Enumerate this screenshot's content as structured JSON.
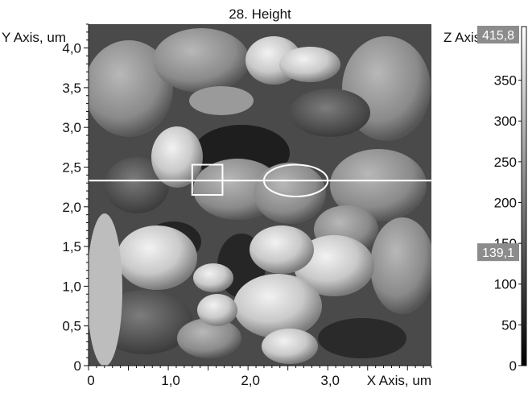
{
  "chart_data": {
    "type": "heatmap",
    "title": "28. Height",
    "xlabel": "X Axis, um",
    "ylabel": "Y Axis, um",
    "zlabel": "Z Axis",
    "xlim": [
      0,
      4.3
    ],
    "ylim": [
      0,
      4.3
    ],
    "x_ticks": [
      {
        "value": 0,
        "label": "0"
      },
      {
        "value": 1,
        "label": "1,0"
      },
      {
        "value": 2,
        "label": "2,0"
      },
      {
        "value": 3,
        "label": "3,0"
      }
    ],
    "y_ticks": [
      {
        "value": 0,
        "label": "0"
      },
      {
        "value": 0.5,
        "label": "0,5"
      },
      {
        "value": 1,
        "label": "1,0"
      },
      {
        "value": 1.5,
        "label": "1,5"
      },
      {
        "value": 2,
        "label": "2,0"
      },
      {
        "value": 2.5,
        "label": "2,5"
      },
      {
        "value": 3,
        "label": "3,0"
      },
      {
        "value": 3.5,
        "label": "3,5"
      },
      {
        "value": 4,
        "label": "4,0"
      }
    ],
    "zlim": [
      0,
      415.8
    ],
    "z_ticks": [
      {
        "value": 0,
        "label": "0"
      },
      {
        "value": 50,
        "label": "50"
      },
      {
        "value": 100,
        "label": "100"
      },
      {
        "value": 150,
        "label": "150"
      },
      {
        "value": 200,
        "label": "200"
      },
      {
        "value": 250,
        "label": "250"
      },
      {
        "value": 300,
        "label": "300"
      },
      {
        "value": 350,
        "label": "350"
      }
    ],
    "z_markers": [
      {
        "value": 415.8,
        "label": "415,8"
      },
      {
        "value": 139.1,
        "label": "139,1"
      }
    ],
    "colormap": [
      "#000000",
      "#ffffff"
    ],
    "section_line": {
      "y": 2.33
    },
    "annotations": [
      {
        "shape": "rectangle",
        "x": [
          1.3,
          1.68
        ],
        "y": [
          2.15,
          2.53
        ]
      },
      {
        "shape": "ellipse",
        "cx": 2.6,
        "cy": 2.33,
        "rx": 0.4,
        "ry": 0.2
      }
    ]
  }
}
